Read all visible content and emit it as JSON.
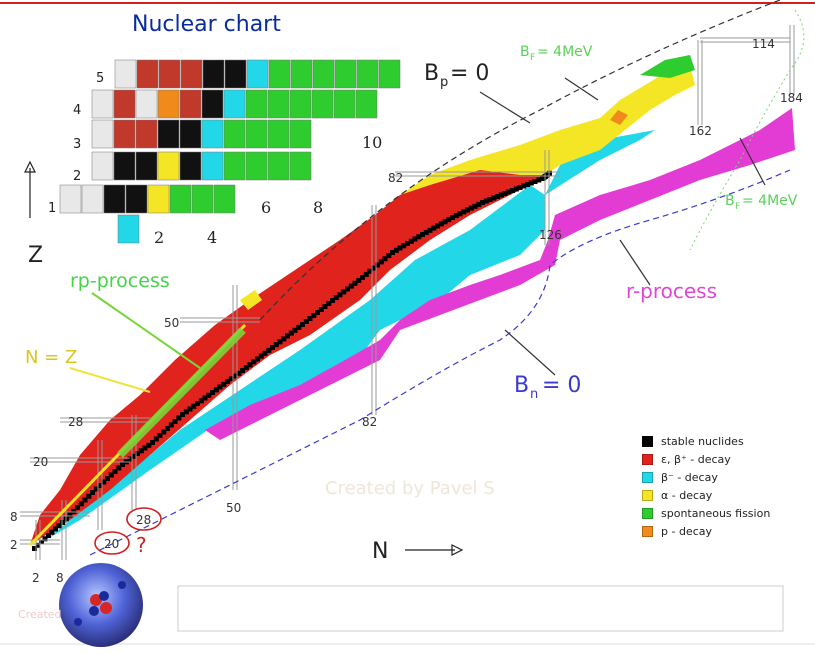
{
  "title": "Nuclear chart",
  "axes": {
    "z_label": "Z",
    "n_label": "N"
  },
  "annotations": {
    "bp_zero": "B",
    "bp_sub": "p",
    "bp_value": "= 0",
    "bn_zero": "B",
    "bn_sub": "n",
    "bn_value": "= 0",
    "bf_top": "B",
    "bf_top_sub": "F",
    "bf_top_value": "= 4MeV",
    "bf_right": "B",
    "bf_right_sub": "F",
    "bf_right_value": "= 4MeV",
    "rp_process": "rp-process",
    "r_process": "r-process",
    "n_equals_z": "N = Z",
    "question": "?"
  },
  "magic_numbers": {
    "z_labels": [
      "2",
      "8",
      "20",
      "28",
      "50",
      "82",
      "114"
    ],
    "n_labels": [
      "2",
      "8",
      "20",
      "28",
      "50",
      "82",
      "126",
      "162",
      "184"
    ]
  },
  "inset": {
    "z_numbers": [
      "1",
      "2",
      "3",
      "4",
      "5"
    ],
    "n_numbers": [
      "2",
      "4",
      "6",
      "8",
      "10"
    ]
  },
  "legend": [
    {
      "label": "stable nuclides",
      "color": "#000000"
    },
    {
      "label": "ε, β⁺ - decay",
      "color": "#e0231c"
    },
    {
      "label": "β⁻ - decay",
      "color": "#22d8e8"
    },
    {
      "label": "α - decay",
      "color": "#f5e625"
    },
    {
      "label": "spontaneous fission",
      "color": "#2ecc2e"
    },
    {
      "label": "p - decay",
      "color": "#f08a1a"
    }
  ],
  "watermark": "Created by Pavel S",
  "watermark_small": "Created",
  "chart_data": {
    "type": "heatmap",
    "title": "Nuclear chart",
    "xlabel": "N",
    "ylabel": "Z",
    "xlim": [
      0,
      190
    ],
    "ylim": [
      0,
      118
    ],
    "magic_N": [
      2,
      8,
      20,
      28,
      50,
      82,
      126,
      162,
      184
    ],
    "magic_Z": [
      2,
      8,
      20,
      28,
      50,
      82,
      114
    ],
    "series": [
      {
        "name": "stable nuclides",
        "N": [
          2,
          8,
          20,
          28,
          50,
          82,
          126
        ],
        "Z": [
          2,
          8,
          20,
          20,
          38,
          56,
          82
        ]
      },
      {
        "name": "r-process",
        "N": [
          50,
          82,
          126,
          184
        ],
        "Z": [
          28,
          48,
          72,
          100
        ]
      }
    ],
    "legend_placement": "bottom-right"
  }
}
